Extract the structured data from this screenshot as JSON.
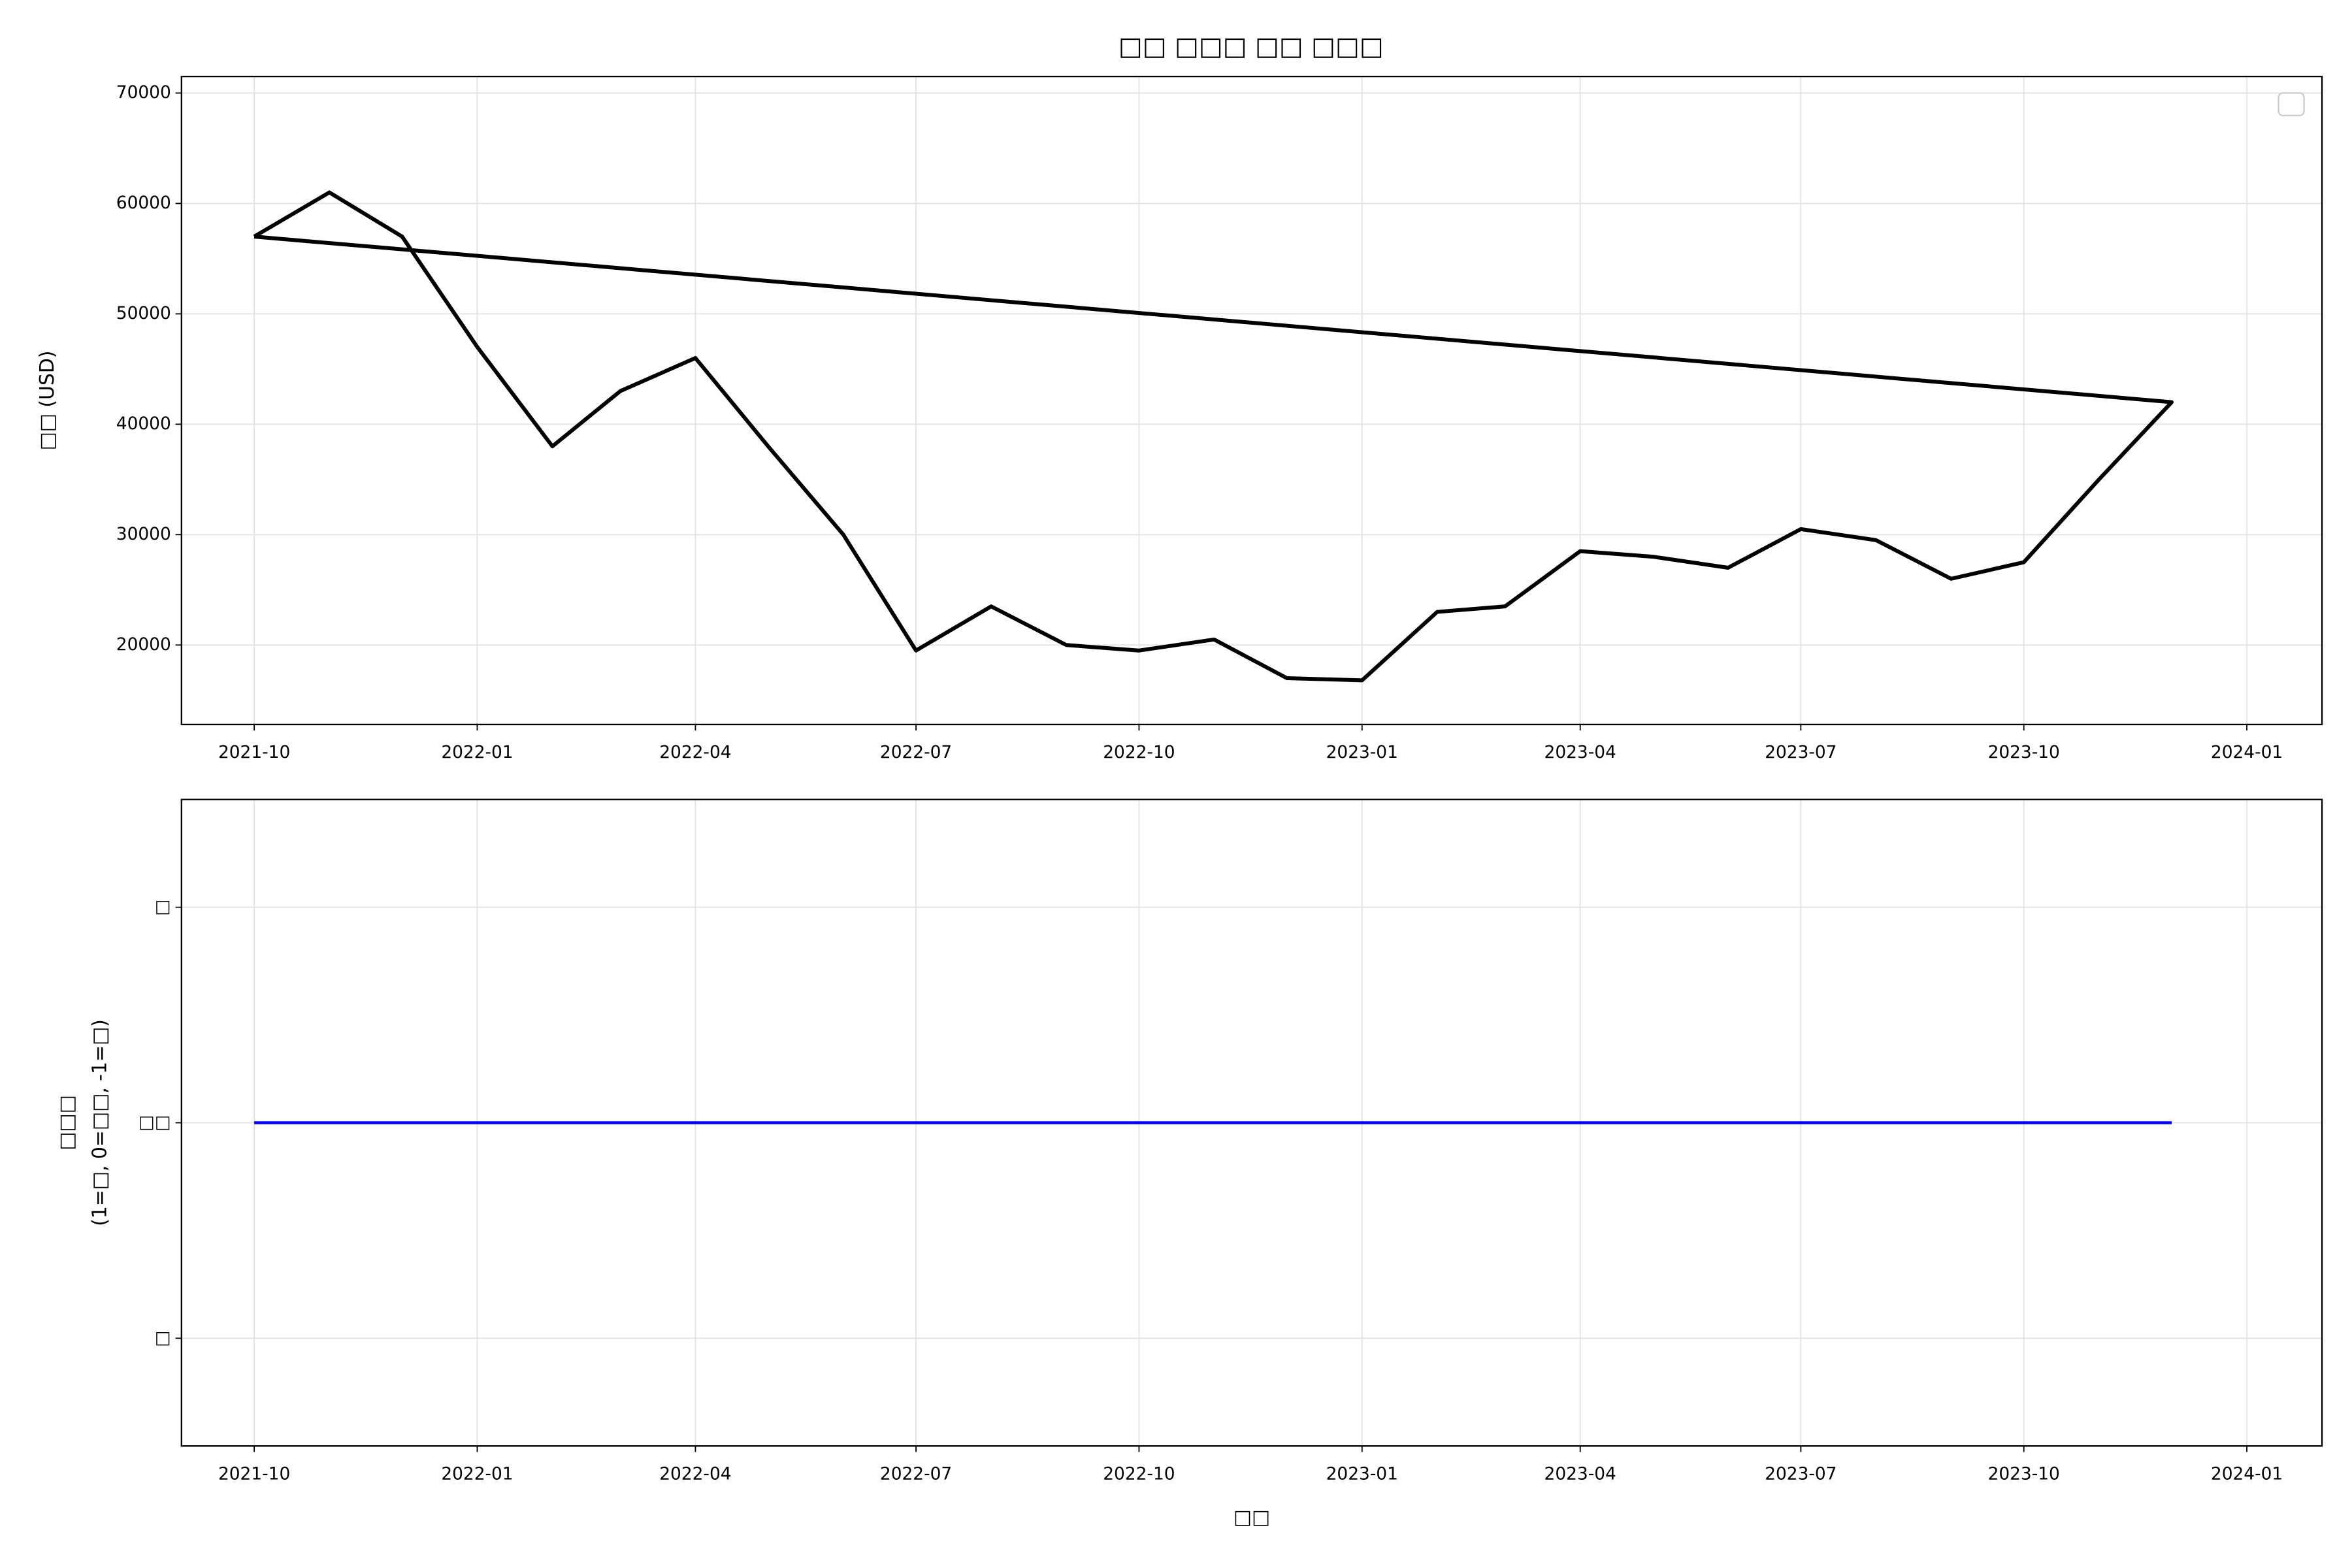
{
  "chart_data": [
    {
      "type": "line",
      "title": "□□ □□□ □□ □□□",
      "ylabel": "□□ (USD)",
      "x": [
        "2021-10",
        "2021-11",
        "2021-12",
        "2022-01",
        "2022-02",
        "2022-03",
        "2022-04",
        "2022-05",
        "2022-06",
        "2022-07",
        "2022-08",
        "2022-09",
        "2022-10",
        "2022-11",
        "2022-12",
        "2023-01",
        "2023-02",
        "2023-03",
        "2023-04",
        "2023-05",
        "2023-06",
        "2023-07",
        "2023-08",
        "2023-09",
        "2023-10",
        "2023-11",
        "2023-12",
        "2021-10"
      ],
      "series": [
        {
          "color": "#000000",
          "values": [
            57000,
            61000,
            57000,
            47000,
            38000,
            43000,
            46000,
            38000,
            30000,
            19500,
            23500,
            20000,
            19500,
            20500,
            17000,
            16800,
            23000,
            23500,
            28500,
            28000,
            27000,
            30500,
            29500,
            26000,
            27500,
            35000,
            42000,
            57000
          ]
        }
      ],
      "xlim": [
        "2021-09",
        "2024-02"
      ],
      "xticks": [
        "2021-10",
        "2022-01",
        "2022-04",
        "2022-07",
        "2022-10",
        "2023-01",
        "2023-04",
        "2023-07",
        "2023-10",
        "2024-01"
      ],
      "ylim": [
        12800,
        71500
      ],
      "yticks": [
        20000,
        30000,
        40000,
        50000,
        60000,
        70000
      ],
      "grid": true,
      "legend": "upper right"
    },
    {
      "type": "line",
      "xlabel": "□□",
      "ylabel": [
        "□□□",
        "(1=□, 0=□□, -1=□)"
      ],
      "x": [
        "2021-10",
        "2023-12"
      ],
      "series": [
        {
          "color": "#0000ff",
          "values": [
            0,
            0
          ]
        }
      ],
      "xlim": [
        "2021-09",
        "2024-02"
      ],
      "xticks": [
        "2021-10",
        "2022-01",
        "2022-04",
        "2022-07",
        "2022-10",
        "2023-01",
        "2023-04",
        "2023-07",
        "2023-10",
        "2024-01"
      ],
      "ylim": [
        -1.5,
        1.5
      ],
      "yticks": [
        {
          "value": -1,
          "label": "□"
        },
        {
          "value": 0,
          "label": "□□"
        },
        {
          "value": 1,
          "label": "□"
        }
      ],
      "grid": true
    }
  ]
}
